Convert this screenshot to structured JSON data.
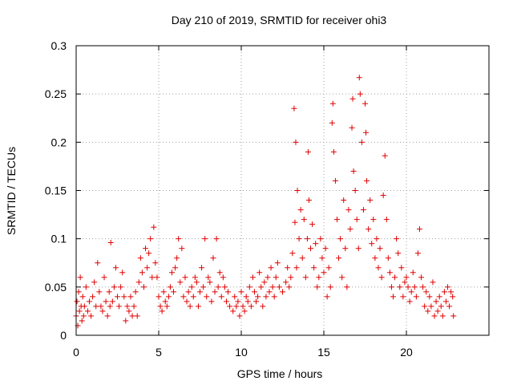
{
  "chart_data": {
    "type": "scatter",
    "title": "Day 210 of 2019, SRMTID for receiver ohi3",
    "xlabel": "GPS time / hours",
    "ylabel": "SRMTID / TECUs",
    "xlim": [
      0,
      25
    ],
    "ylim": [
      0,
      0.3
    ],
    "xticks": [
      0,
      5,
      10,
      15,
      20
    ],
    "yticks": [
      0,
      0.05,
      0.1,
      0.15,
      0.2,
      0.25,
      0.3
    ],
    "xtick_labels": [
      "0",
      "5",
      "10",
      "15",
      "20"
    ],
    "ytick_labels": [
      "0",
      "0.05",
      "0.1",
      "0.15",
      "0.2",
      "0.25",
      "0.3"
    ],
    "grid": true,
    "marker": "+",
    "series": [
      {
        "name": "SRMTID",
        "color": "#e00000",
        "points": [
          [
            0.0,
            0.02
          ],
          [
            0.05,
            0.035
          ],
          [
            0.1,
            0.01
          ],
          [
            0.15,
            0.045
          ],
          [
            0.2,
            0.025
          ],
          [
            0.25,
            0.06
          ],
          [
            0.3,
            0.03
          ],
          [
            0.35,
            0.015
          ],
          [
            0.4,
            0.04
          ],
          [
            0.45,
            0.02
          ],
          [
            0.5,
            0.03
          ],
          [
            0.6,
            0.05
          ],
          [
            0.7,
            0.025
          ],
          [
            0.8,
            0.035
          ],
          [
            0.9,
            0.02
          ],
          [
            1.0,
            0.04
          ],
          [
            1.1,
            0.055
          ],
          [
            1.2,
            0.03
          ],
          [
            1.3,
            0.075
          ],
          [
            1.4,
            0.045
          ],
          [
            1.5,
            0.03
          ],
          [
            1.6,
            0.025
          ],
          [
            1.7,
            0.06
          ],
          [
            1.8,
            0.035
          ],
          [
            1.9,
            0.02
          ],
          [
            2.0,
            0.045
          ],
          [
            2.05,
            0.03
          ],
          [
            2.1,
            0.096
          ],
          [
            2.2,
            0.035
          ],
          [
            2.3,
            0.05
          ],
          [
            2.4,
            0.07
          ],
          [
            2.5,
            0.04
          ],
          [
            2.6,
            0.03
          ],
          [
            2.7,
            0.05
          ],
          [
            2.8,
            0.065
          ],
          [
            2.9,
            0.04
          ],
          [
            3.0,
            0.015
          ],
          [
            3.1,
            0.03
          ],
          [
            3.2,
            0.025
          ],
          [
            3.3,
            0.04
          ],
          [
            3.4,
            0.02
          ],
          [
            3.5,
            0.03
          ],
          [
            3.6,
            0.045
          ],
          [
            3.7,
            0.02
          ],
          [
            3.8,
            0.055
          ],
          [
            3.9,
            0.08
          ],
          [
            4.0,
            0.065
          ],
          [
            4.1,
            0.05
          ],
          [
            4.2,
            0.09
          ],
          [
            4.3,
            0.07
          ],
          [
            4.4,
            0.085
          ],
          [
            4.5,
            0.1
          ],
          [
            4.6,
            0.06
          ],
          [
            4.7,
            0.112
          ],
          [
            4.8,
            0.075
          ],
          [
            4.9,
            0.06
          ],
          [
            5.0,
            0.04
          ],
          [
            5.1,
            0.03
          ],
          [
            5.2,
            0.025
          ],
          [
            5.3,
            0.045
          ],
          [
            5.4,
            0.035
          ],
          [
            5.5,
            0.03
          ],
          [
            5.6,
            0.04
          ],
          [
            5.7,
            0.05
          ],
          [
            5.8,
            0.065
          ],
          [
            5.9,
            0.045
          ],
          [
            6.0,
            0.07
          ],
          [
            6.1,
            0.08
          ],
          [
            6.2,
            0.1
          ],
          [
            6.3,
            0.055
          ],
          [
            6.4,
            0.09
          ],
          [
            6.5,
            0.04
          ],
          [
            6.6,
            0.06
          ],
          [
            6.7,
            0.035
          ],
          [
            6.8,
            0.045
          ],
          [
            6.9,
            0.03
          ],
          [
            7.0,
            0.05
          ],
          [
            7.1,
            0.04
          ],
          [
            7.2,
            0.06
          ],
          [
            7.3,
            0.055
          ],
          [
            7.4,
            0.03
          ],
          [
            7.5,
            0.045
          ],
          [
            7.6,
            0.07
          ],
          [
            7.7,
            0.05
          ],
          [
            7.8,
            0.1
          ],
          [
            7.9,
            0.04
          ],
          [
            8.0,
            0.06
          ],
          [
            8.1,
            0.055
          ],
          [
            8.2,
            0.035
          ],
          [
            8.3,
            0.08
          ],
          [
            8.4,
            0.045
          ],
          [
            8.5,
            0.1
          ],
          [
            8.6,
            0.05
          ],
          [
            8.7,
            0.065
          ],
          [
            8.8,
            0.04
          ],
          [
            8.9,
            0.06
          ],
          [
            9.0,
            0.05
          ],
          [
            9.1,
            0.035
          ],
          [
            9.2,
            0.045
          ],
          [
            9.3,
            0.03
          ],
          [
            9.5,
            0.025
          ],
          [
            9.6,
            0.04
          ],
          [
            9.7,
            0.03
          ],
          [
            9.8,
            0.035
          ],
          [
            9.9,
            0.02
          ],
          [
            10.0,
            0.045
          ],
          [
            10.1,
            0.03
          ],
          [
            10.2,
            0.025
          ],
          [
            10.3,
            0.04
          ],
          [
            10.4,
            0.035
          ],
          [
            10.5,
            0.05
          ],
          [
            10.6,
            0.03
          ],
          [
            10.7,
            0.06
          ],
          [
            10.8,
            0.045
          ],
          [
            10.9,
            0.035
          ],
          [
            11.0,
            0.04
          ],
          [
            11.1,
            0.065
          ],
          [
            11.2,
            0.05
          ],
          [
            11.3,
            0.03
          ],
          [
            11.4,
            0.055
          ],
          [
            11.5,
            0.04
          ],
          [
            11.6,
            0.06
          ],
          [
            11.7,
            0.045
          ],
          [
            11.8,
            0.07
          ],
          [
            11.9,
            0.05
          ],
          [
            12.0,
            0.04
          ],
          [
            12.1,
            0.06
          ],
          [
            12.2,
            0.075
          ],
          [
            12.3,
            0.05
          ],
          [
            12.5,
            0.045
          ],
          [
            12.7,
            0.055
          ],
          [
            12.8,
            0.07
          ],
          [
            12.9,
            0.05
          ],
          [
            13.0,
            0.06
          ],
          [
            13.1,
            0.085
          ],
          [
            13.2,
            0.235
          ],
          [
            13.25,
            0.117
          ],
          [
            13.3,
            0.2
          ],
          [
            13.35,
            0.07
          ],
          [
            13.4,
            0.15
          ],
          [
            13.5,
            0.1
          ],
          [
            13.6,
            0.13
          ],
          [
            13.7,
            0.08
          ],
          [
            13.8,
            0.12
          ],
          [
            13.9,
            0.06
          ],
          [
            14.0,
            0.1
          ],
          [
            14.05,
            0.19
          ],
          [
            14.1,
            0.14
          ],
          [
            14.2,
            0.09
          ],
          [
            14.3,
            0.115
          ],
          [
            14.4,
            0.07
          ],
          [
            14.5,
            0.095
          ],
          [
            14.6,
            0.05
          ],
          [
            14.7,
            0.06
          ],
          [
            14.8,
            0.1
          ],
          [
            14.9,
            0.08
          ],
          [
            15.0,
            0.065
          ],
          [
            15.1,
            0.09
          ],
          [
            15.2,
            0.04
          ],
          [
            15.3,
            0.07
          ],
          [
            15.4,
            0.05
          ],
          [
            15.5,
            0.22
          ],
          [
            15.55,
            0.24
          ],
          [
            15.6,
            0.19
          ],
          [
            15.7,
            0.16
          ],
          [
            15.8,
            0.12
          ],
          [
            15.9,
            0.08
          ],
          [
            16.0,
            0.1
          ],
          [
            16.1,
            0.06
          ],
          [
            16.2,
            0.14
          ],
          [
            16.3,
            0.09
          ],
          [
            16.4,
            0.05
          ],
          [
            16.5,
            0.13
          ],
          [
            16.6,
            0.11
          ],
          [
            16.7,
            0.215
          ],
          [
            16.75,
            0.245
          ],
          [
            16.8,
            0.17
          ],
          [
            16.9,
            0.15
          ],
          [
            17.0,
            0.12
          ],
          [
            17.1,
            0.09
          ],
          [
            17.15,
            0.267
          ],
          [
            17.2,
            0.25
          ],
          [
            17.3,
            0.2
          ],
          [
            17.4,
            0.13
          ],
          [
            17.5,
            0.24
          ],
          [
            17.55,
            0.21
          ],
          [
            17.6,
            0.16
          ],
          [
            17.7,
            0.11
          ],
          [
            17.8,
            0.14
          ],
          [
            17.9,
            0.095
          ],
          [
            18.0,
            0.12
          ],
          [
            18.1,
            0.08
          ],
          [
            18.2,
            0.1
          ],
          [
            18.3,
            0.07
          ],
          [
            18.4,
            0.09
          ],
          [
            18.5,
            0.06
          ],
          [
            18.6,
            0.145
          ],
          [
            18.7,
            0.186
          ],
          [
            18.8,
            0.12
          ],
          [
            18.9,
            0.08
          ],
          [
            19.0,
            0.065
          ],
          [
            19.1,
            0.05
          ],
          [
            19.2,
            0.04
          ],
          [
            19.3,
            0.06
          ],
          [
            19.4,
            0.1
          ],
          [
            19.5,
            0.085
          ],
          [
            19.6,
            0.05
          ],
          [
            19.7,
            0.07
          ],
          [
            19.8,
            0.04
          ],
          [
            19.9,
            0.055
          ],
          [
            20.0,
            0.06
          ],
          [
            20.1,
            0.05
          ],
          [
            20.2,
            0.035
          ],
          [
            20.3,
            0.045
          ],
          [
            20.4,
            0.065
          ],
          [
            20.5,
            0.05
          ],
          [
            20.6,
            0.04
          ],
          [
            20.7,
            0.085
          ],
          [
            20.8,
            0.11
          ],
          [
            20.9,
            0.06
          ],
          [
            21.0,
            0.05
          ],
          [
            21.1,
            0.03
          ],
          [
            21.2,
            0.045
          ],
          [
            21.3,
            0.025
          ],
          [
            21.4,
            0.04
          ],
          [
            21.5,
            0.03
          ],
          [
            21.6,
            0.055
          ],
          [
            21.7,
            0.02
          ],
          [
            21.8,
            0.035
          ],
          [
            21.9,
            0.025
          ],
          [
            22.0,
            0.04
          ],
          [
            22.1,
            0.03
          ],
          [
            22.2,
            0.02
          ],
          [
            22.3,
            0.045
          ],
          [
            22.4,
            0.035
          ],
          [
            22.5,
            0.05
          ],
          [
            22.6,
            0.03
          ],
          [
            22.7,
            0.045
          ],
          [
            22.8,
            0.04
          ],
          [
            22.85,
            0.02
          ]
        ]
      }
    ]
  }
}
